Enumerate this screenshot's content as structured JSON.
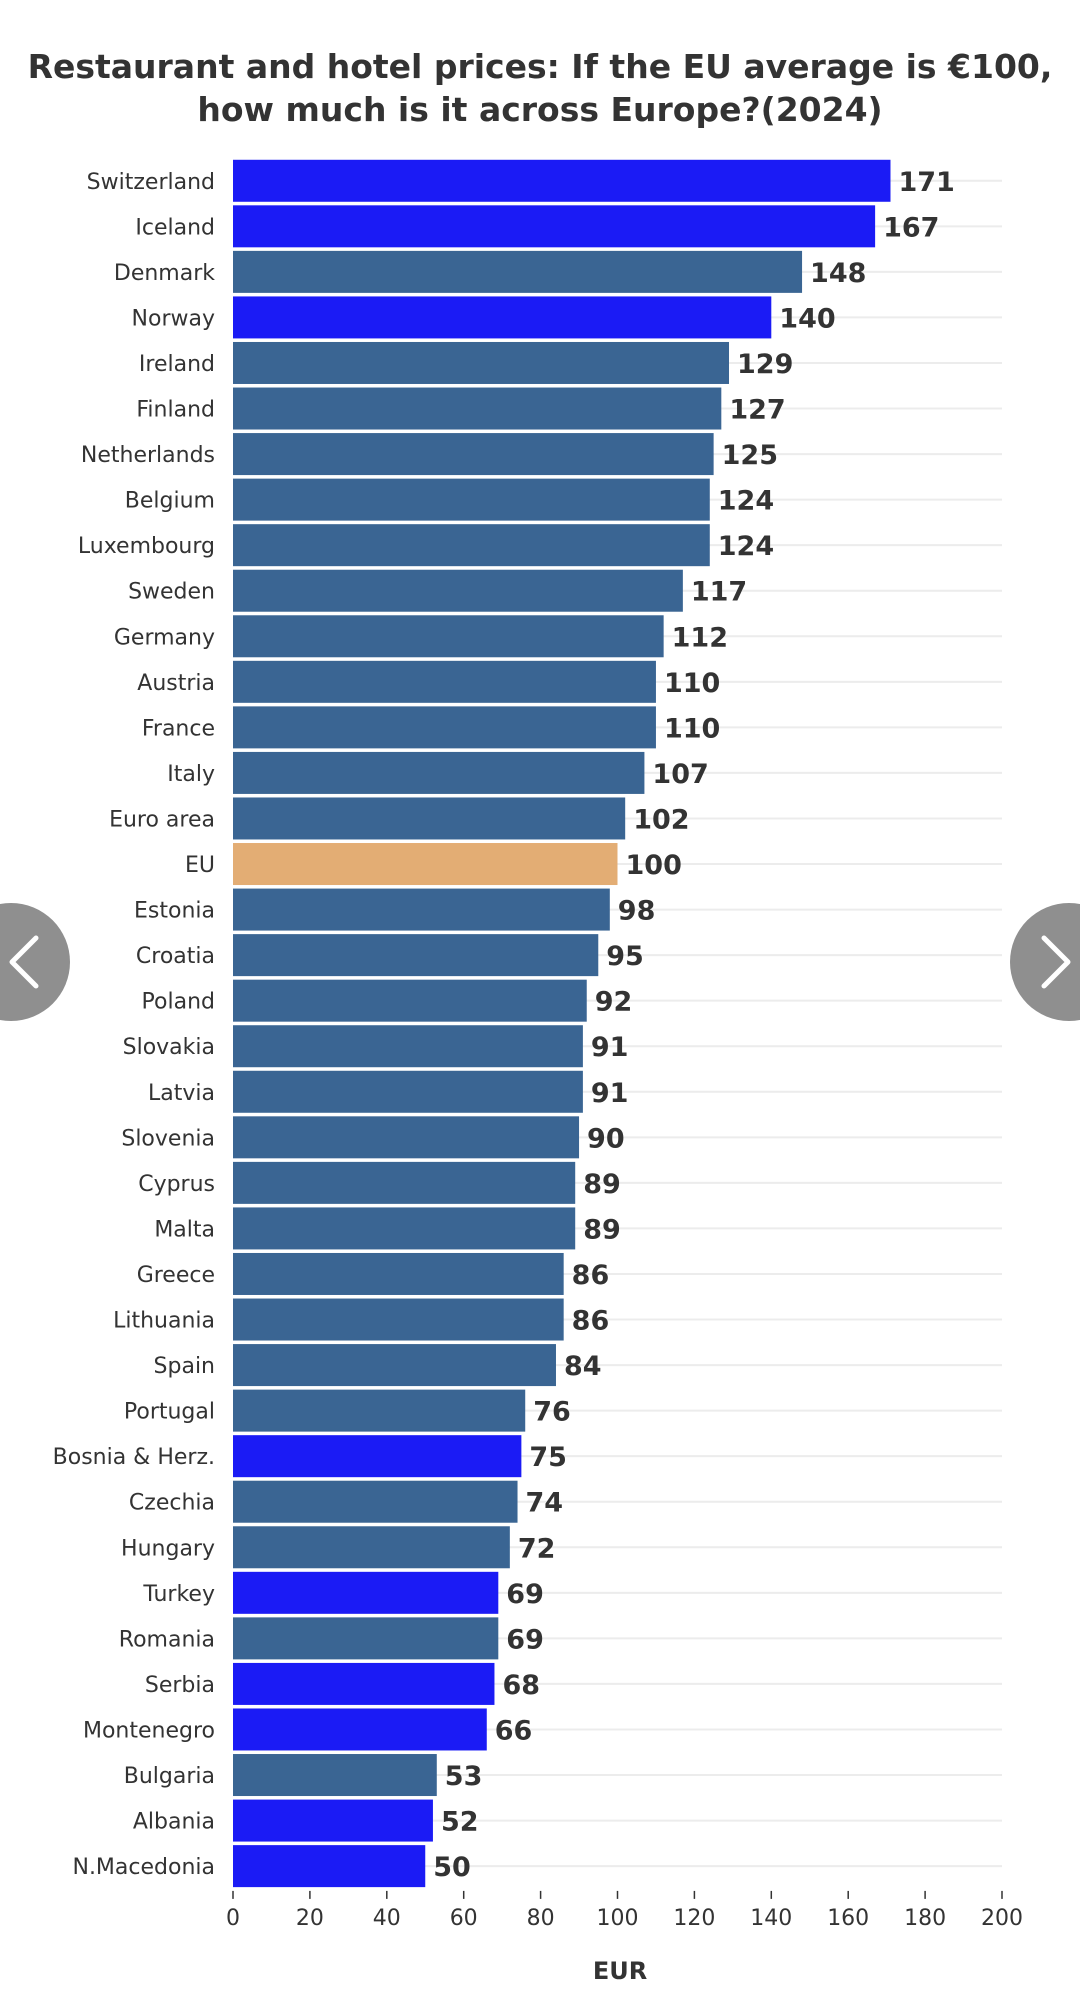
{
  "chart_data": {
    "type": "bar",
    "orientation": "horizontal",
    "title": "Restaurant and hotel prices: If the EU average is €100,",
    "title_line2": "how much is it across Europe?(2024)",
    "xlabel": "EUR",
    "ylabel": "",
    "xlim": [
      0,
      200
    ],
    "xticks": [
      0,
      20,
      40,
      60,
      80,
      100,
      120,
      140,
      160,
      180,
      200
    ],
    "grid": true,
    "colors": {
      "eu_member": "#3a6593",
      "non_eu": "#1b1bf5",
      "eu_average": "#e3ad74",
      "label_text": "#333333",
      "grid": "#ececec"
    },
    "bars": [
      {
        "label": "Switzerland",
        "value": 171,
        "group": "non_eu"
      },
      {
        "label": "Iceland",
        "value": 167,
        "group": "non_eu"
      },
      {
        "label": "Denmark",
        "value": 148,
        "group": "eu_member"
      },
      {
        "label": "Norway",
        "value": 140,
        "group": "non_eu"
      },
      {
        "label": "Ireland",
        "value": 129,
        "group": "eu_member"
      },
      {
        "label": "Finland",
        "value": 127,
        "group": "eu_member"
      },
      {
        "label": "Netherlands",
        "value": 125,
        "group": "eu_member"
      },
      {
        "label": "Belgium",
        "value": 124,
        "group": "eu_member"
      },
      {
        "label": "Luxembourg",
        "value": 124,
        "group": "eu_member"
      },
      {
        "label": "Sweden",
        "value": 117,
        "group": "eu_member"
      },
      {
        "label": "Germany",
        "value": 112,
        "group": "eu_member"
      },
      {
        "label": "Austria",
        "value": 110,
        "group": "eu_member"
      },
      {
        "label": "France",
        "value": 110,
        "group": "eu_member"
      },
      {
        "label": "Italy",
        "value": 107,
        "group": "eu_member"
      },
      {
        "label": "Euro area",
        "value": 102,
        "group": "eu_member"
      },
      {
        "label": "EU",
        "value": 100,
        "group": "eu_average"
      },
      {
        "label": "Estonia",
        "value": 98,
        "group": "eu_member"
      },
      {
        "label": "Croatia",
        "value": 95,
        "group": "eu_member"
      },
      {
        "label": "Poland",
        "value": 92,
        "group": "eu_member"
      },
      {
        "label": "Slovakia",
        "value": 91,
        "group": "eu_member"
      },
      {
        "label": "Latvia",
        "value": 91,
        "group": "eu_member"
      },
      {
        "label": "Slovenia",
        "value": 90,
        "group": "eu_member"
      },
      {
        "label": "Cyprus",
        "value": 89,
        "group": "eu_member"
      },
      {
        "label": "Malta",
        "value": 89,
        "group": "eu_member"
      },
      {
        "label": "Greece",
        "value": 86,
        "group": "eu_member"
      },
      {
        "label": "Lithuania",
        "value": 86,
        "group": "eu_member"
      },
      {
        "label": "Spain",
        "value": 84,
        "group": "eu_member"
      },
      {
        "label": "Portugal",
        "value": 76,
        "group": "eu_member"
      },
      {
        "label": "Bosnia & Herz.",
        "value": 75,
        "group": "non_eu"
      },
      {
        "label": "Czechia",
        "value": 74,
        "group": "eu_member"
      },
      {
        "label": "Hungary",
        "value": 72,
        "group": "eu_member"
      },
      {
        "label": "Turkey",
        "value": 69,
        "group": "non_eu"
      },
      {
        "label": "Romania",
        "value": 69,
        "group": "eu_member"
      },
      {
        "label": "Serbia",
        "value": 68,
        "group": "non_eu"
      },
      {
        "label": "Montenegro",
        "value": 66,
        "group": "non_eu"
      },
      {
        "label": "Bulgaria",
        "value": 53,
        "group": "eu_member"
      },
      {
        "label": "Albania",
        "value": 52,
        "group": "non_eu"
      },
      {
        "label": "N.Macedonia",
        "value": 50,
        "group": "non_eu"
      }
    ]
  },
  "nav": {
    "prev_icon": "chevron-left-icon",
    "next_icon": "chevron-right-icon"
  }
}
